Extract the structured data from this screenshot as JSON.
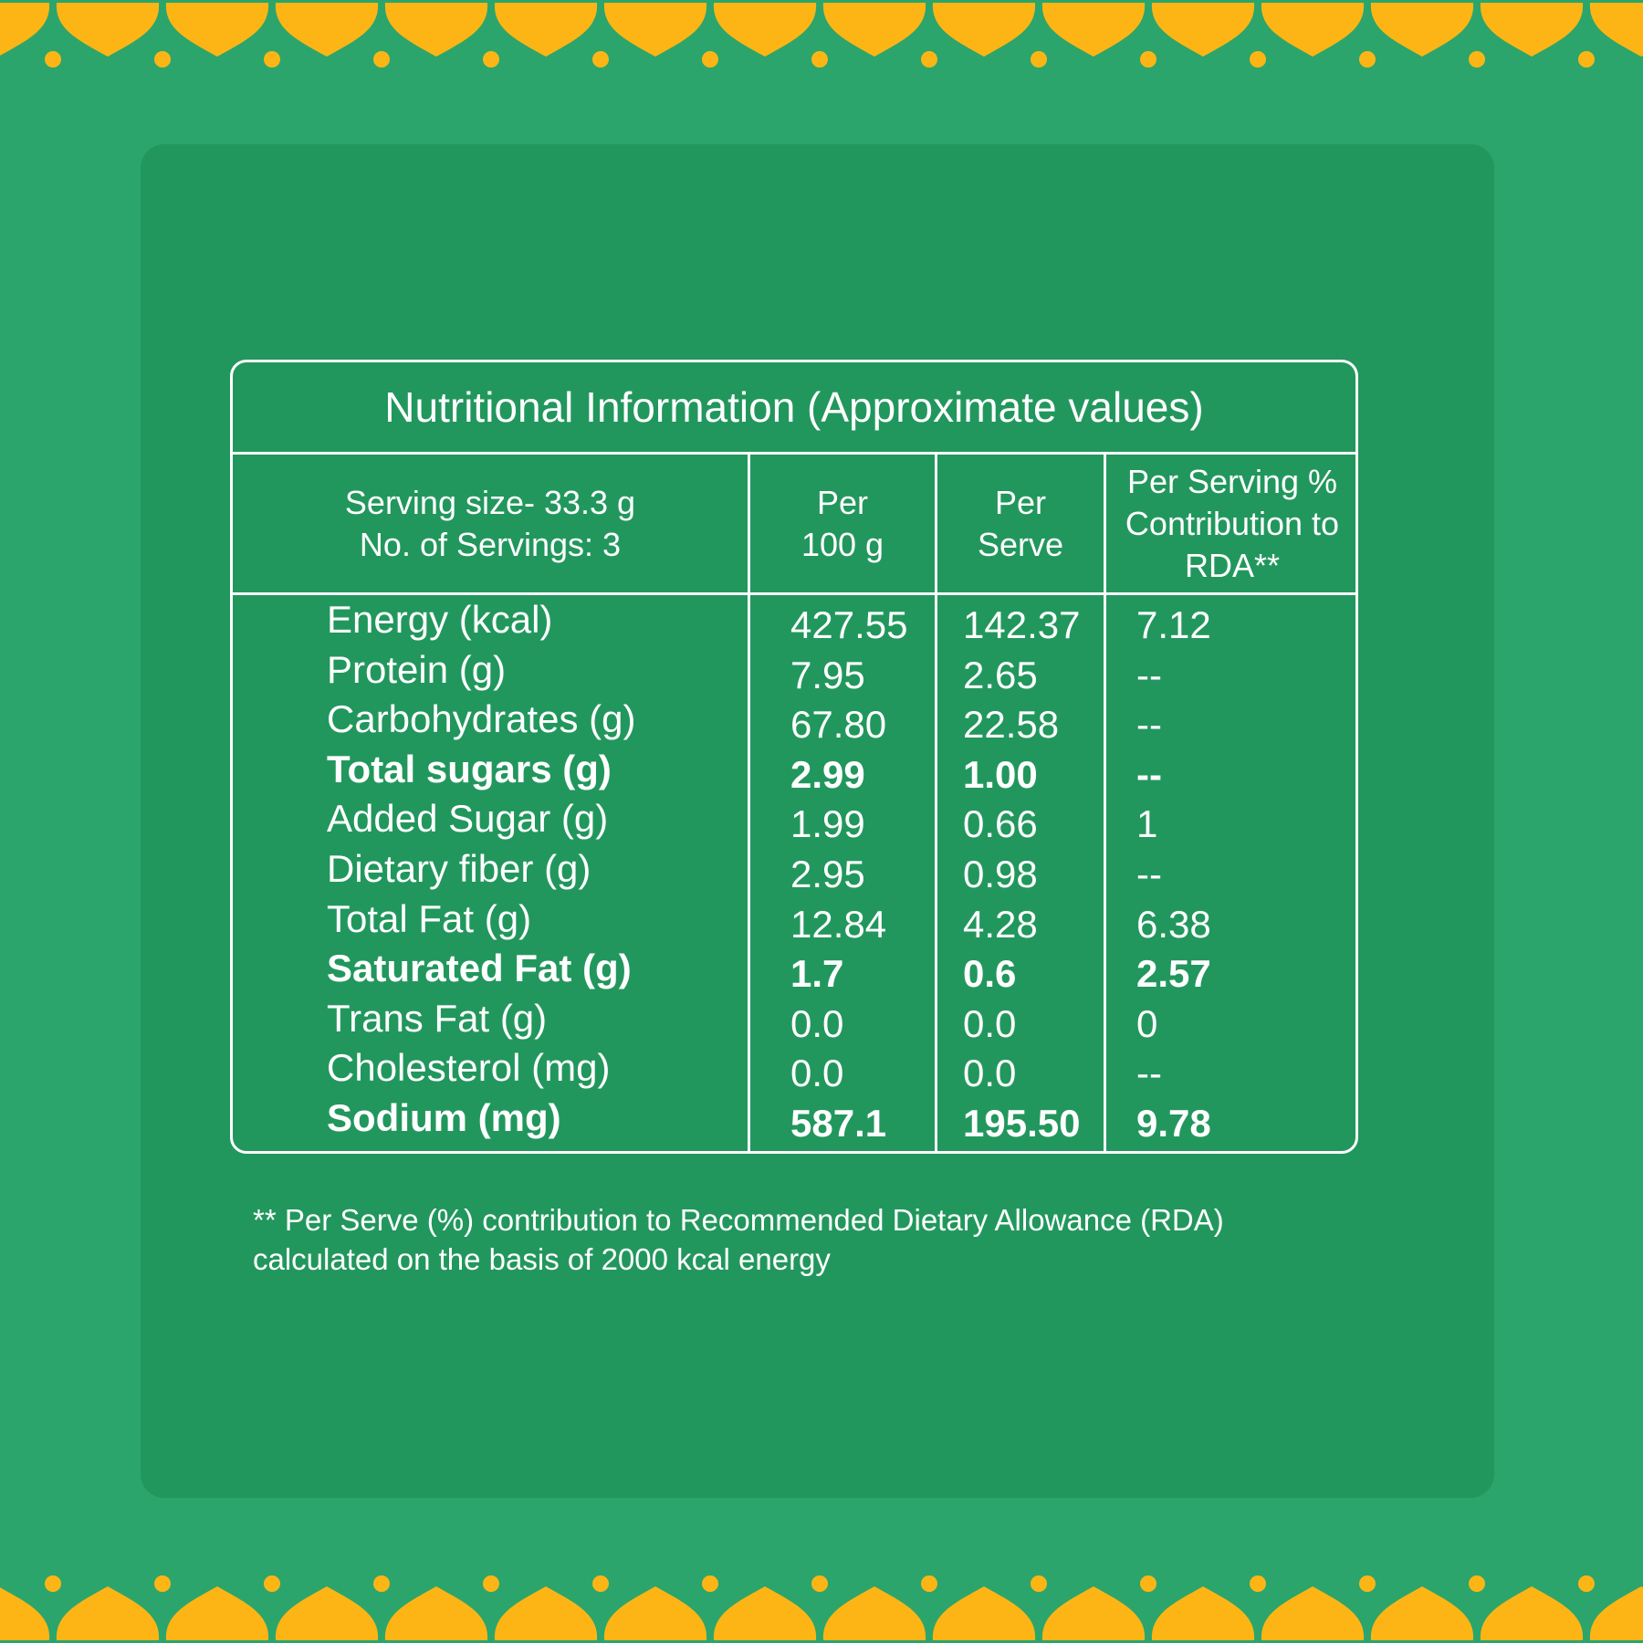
{
  "colors": {
    "background": "#2ba56b",
    "panel": "#22975d",
    "accent": "#fdb515",
    "text": "#ffffff"
  },
  "title": "Nutritional Information (Approximate values)",
  "header": {
    "serving_size": "Serving size- 33.3 g",
    "servings": "No. of Servings: 3",
    "col1": [
      "Per",
      "100 g"
    ],
    "col2": [
      "Per",
      "Serve"
    ],
    "col3": [
      "Per Serving %",
      "Contribution to",
      "RDA**"
    ]
  },
  "rows": [
    {
      "label": "Energy (kcal)",
      "per100": "427.55",
      "perServe": "142.37",
      "rda": "7.12",
      "bold": false
    },
    {
      "label": "Protein (g)",
      "per100": "7.95",
      "perServe": "2.65",
      "rda": "--",
      "bold": false
    },
    {
      "label": "Carbohydrates (g)",
      "per100": "67.80",
      "perServe": "22.58",
      "rda": "--",
      "bold": false
    },
    {
      "label": "Total sugars (g)",
      "per100": "2.99",
      "perServe": "1.00",
      "rda": "--",
      "bold": true
    },
    {
      "label": "Added Sugar (g)",
      "per100": "1.99",
      "perServe": "0.66",
      "rda": "1",
      "bold": false
    },
    {
      "label": "Dietary fiber (g)",
      "per100": "2.95",
      "perServe": "0.98",
      "rda": "--",
      "bold": false
    },
    {
      "label": "Total Fat (g)",
      "per100": "12.84",
      "perServe": "4.28",
      "rda": "6.38",
      "bold": false
    },
    {
      "label": "Saturated Fat (g)",
      "per100": "1.7",
      "perServe": "0.6",
      "rda": "2.57",
      "bold": true
    },
    {
      "label": "Trans Fat (g)",
      "per100": "0.0",
      "perServe": "0.0",
      "rda": "0",
      "bold": false
    },
    {
      "label": "Cholesterol (mg)",
      "per100": "0.0",
      "perServe": "0.0",
      "rda": "--",
      "bold": false
    },
    {
      "label": "Sodium (mg)",
      "per100": "587.1",
      "perServe": "195.50",
      "rda": "9.78",
      "bold": true
    }
  ],
  "footnote": [
    "** Per Serve (%) contribution to Recommended Dietary Allowance (RDA)",
    "calculated on the basis of 2000 kcal energy"
  ]
}
